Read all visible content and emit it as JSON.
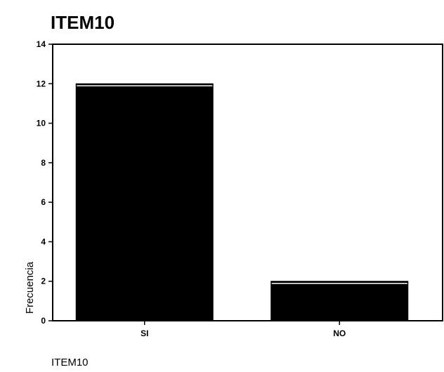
{
  "chart_data": {
    "type": "bar",
    "title": "ITEM10",
    "xlabel": "ITEM10",
    "ylabel": "Frecuencia",
    "categories": [
      "SI",
      "NO"
    ],
    "values": [
      12,
      2
    ],
    "ylim": [
      0,
      14
    ],
    "yticks": [
      0,
      2,
      4,
      6,
      8,
      10,
      12,
      14
    ],
    "grid": false,
    "bar_color": "#000000"
  }
}
